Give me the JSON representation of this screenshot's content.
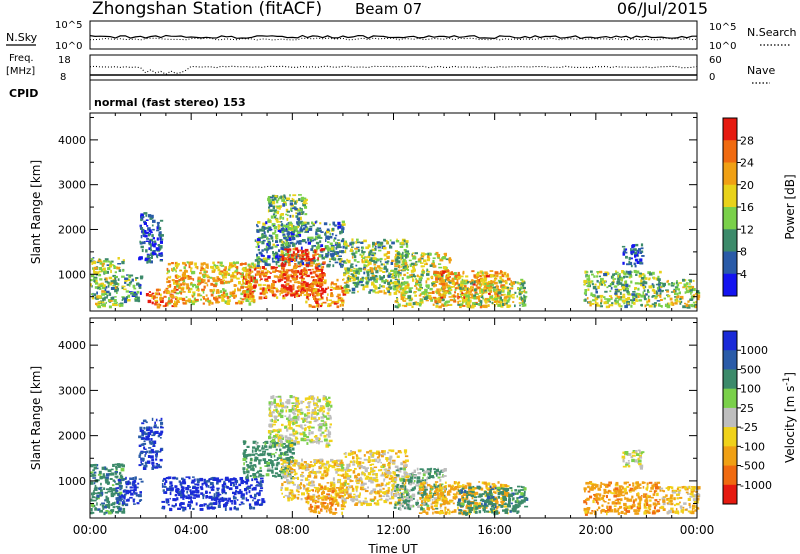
{
  "header": {
    "station_title": "Zhongshan Station (fitACF)",
    "beam": "Beam 07",
    "date": "06/Jul/2015"
  },
  "top_panels": {
    "nsky_label": "N.Sky",
    "nsearch_label": "N.Search",
    "noise_tick_high": "10^5",
    "noise_tick_low": "10^0",
    "freq_label": "Freq.",
    "freq_unit": "[MHz]",
    "freq_tick_high": "18",
    "freq_tick_low": "8",
    "nave_label": "Nave",
    "nave_tick_high": "60",
    "nave_tick_low": "0",
    "cpid_label": "CPID",
    "cpid_text": "normal (fast stereo) 153"
  },
  "chart_data": [
    {
      "type": "heatmap",
      "panel": "power",
      "xlabel": "",
      "ylabel": "Slant Range [km]",
      "x_range_hours_ut": [
        0,
        24
      ],
      "ylim": [
        180,
        4600
      ],
      "yticks": [
        1000,
        2000,
        3000,
        4000
      ],
      "colorbar_label": "Power [dB]",
      "colorbar_ticks": [
        "4",
        "8",
        "12",
        "16",
        "20",
        "24",
        "28"
      ],
      "colorbar_colors": [
        "#1414f0",
        "#2a5ba8",
        "#3c8a6a",
        "#7ad04a",
        "#e8d21a",
        "#f0a014",
        "#f06a10",
        "#e61a10"
      ],
      "scatter_blocks": [
        {
          "x": [
            0.0,
            1.3
          ],
          "y": [
            300,
            1400
          ],
          "value": 14
        },
        {
          "x": [
            1.3,
            2.0
          ],
          "y": [
            400,
            1000
          ],
          "value": 10
        },
        {
          "x": [
            1.9,
            2.8
          ],
          "y": [
            1300,
            2400
          ],
          "value": 5
        },
        {
          "x": [
            2.2,
            3.4
          ],
          "y": [
            300,
            700
          ],
          "value": 26
        },
        {
          "x": [
            3.0,
            6.5
          ],
          "y": [
            350,
            1300
          ],
          "value": 20
        },
        {
          "x": [
            6.0,
            8.5
          ],
          "y": [
            500,
            1200
          ],
          "value": 25
        },
        {
          "x": [
            6.5,
            10.0
          ],
          "y": [
            1200,
            2200
          ],
          "value": 10
        },
        {
          "x": [
            7.0,
            8.5
          ],
          "y": [
            2000,
            2800
          ],
          "value": 13
        },
        {
          "x": [
            7.5,
            9.2
          ],
          "y": [
            550,
            1600
          ],
          "value": 28
        },
        {
          "x": [
            8.5,
            10.0
          ],
          "y": [
            300,
            900
          ],
          "value": 24
        },
        {
          "x": [
            10.0,
            12.5
          ],
          "y": [
            600,
            1800
          ],
          "value": 14
        },
        {
          "x": [
            12.0,
            14.2
          ],
          "y": [
            300,
            1500
          ],
          "value": 16
        },
        {
          "x": [
            13.5,
            16.5
          ],
          "y": [
            300,
            1100
          ],
          "value": 22
        },
        {
          "x": [
            14.5,
            17.2
          ],
          "y": [
            300,
            900
          ],
          "value": 16
        },
        {
          "x": [
            19.5,
            22.5
          ],
          "y": [
            300,
            1100
          ],
          "value": 14
        },
        {
          "x": [
            21.0,
            21.8
          ],
          "y": [
            1200,
            1700
          ],
          "value": 5
        },
        {
          "x": [
            22.5,
            24.0
          ],
          "y": [
            300,
            900
          ],
          "value": 16
        }
      ]
    },
    {
      "type": "heatmap",
      "panel": "velocity",
      "xlabel": "Time UT",
      "ylabel": "Slant Range [km]",
      "x_range_hours_ut": [
        0,
        24
      ],
      "xticks": [
        "00:00",
        "04:00",
        "08:00",
        "12:00",
        "16:00",
        "20:00",
        "00:00"
      ],
      "ylim": [
        180,
        4600
      ],
      "yticks": [
        1000,
        2000,
        3000,
        4000
      ],
      "colorbar_label": "Velocity [m s",
      "colorbar_label_sup": "-1",
      "colorbar_label_end": "]",
      "colorbar_ticks": [
        "1000",
        "500",
        "100",
        "25",
        "-25",
        "-100",
        "-500",
        "-1000"
      ],
      "colorbar_colors": [
        "#1a2ad8",
        "#2a5ba8",
        "#3c8a6a",
        "#7ad04a",
        "#bebebe",
        "#f0d21a",
        "#f0a014",
        "#f06a10",
        "#e61a10"
      ],
      "scatter_blocks": [
        {
          "x": [
            0.0,
            1.3
          ],
          "y": [
            300,
            1400
          ],
          "value": 200
        },
        {
          "x": [
            1.0,
            2.0
          ],
          "y": [
            500,
            1100
          ],
          "value": 700
        },
        {
          "x": [
            1.9,
            2.8
          ],
          "y": [
            1300,
            2400
          ],
          "value": 700
        },
        {
          "x": [
            2.8,
            6.8
          ],
          "y": [
            400,
            1100
          ],
          "value": 900
        },
        {
          "x": [
            6.0,
            8.0
          ],
          "y": [
            1100,
            1900
          ],
          "value": 150
        },
        {
          "x": [
            7.0,
            9.5
          ],
          "y": [
            1800,
            2900
          ],
          "value": 0
        },
        {
          "x": [
            7.5,
            10.0
          ],
          "y": [
            600,
            1500
          ],
          "value": -60
        },
        {
          "x": [
            8.5,
            10.0
          ],
          "y": [
            300,
            900
          ],
          "value": -200
        },
        {
          "x": [
            10.0,
            12.5
          ],
          "y": [
            500,
            1700
          ],
          "value": -60
        },
        {
          "x": [
            12.0,
            14.0
          ],
          "y": [
            400,
            1300
          ],
          "value": 60
        },
        {
          "x": [
            13.0,
            16.5
          ],
          "y": [
            300,
            1000
          ],
          "value": -150
        },
        {
          "x": [
            14.5,
            17.2
          ],
          "y": [
            300,
            900
          ],
          "value": 200
        },
        {
          "x": [
            19.5,
            22.5
          ],
          "y": [
            300,
            1000
          ],
          "value": -200
        },
        {
          "x": [
            21.0,
            21.8
          ],
          "y": [
            1300,
            1700
          ],
          "value": 0
        },
        {
          "x": [
            22.5,
            24.0
          ],
          "y": [
            300,
            900
          ],
          "value": -80
        }
      ]
    }
  ]
}
